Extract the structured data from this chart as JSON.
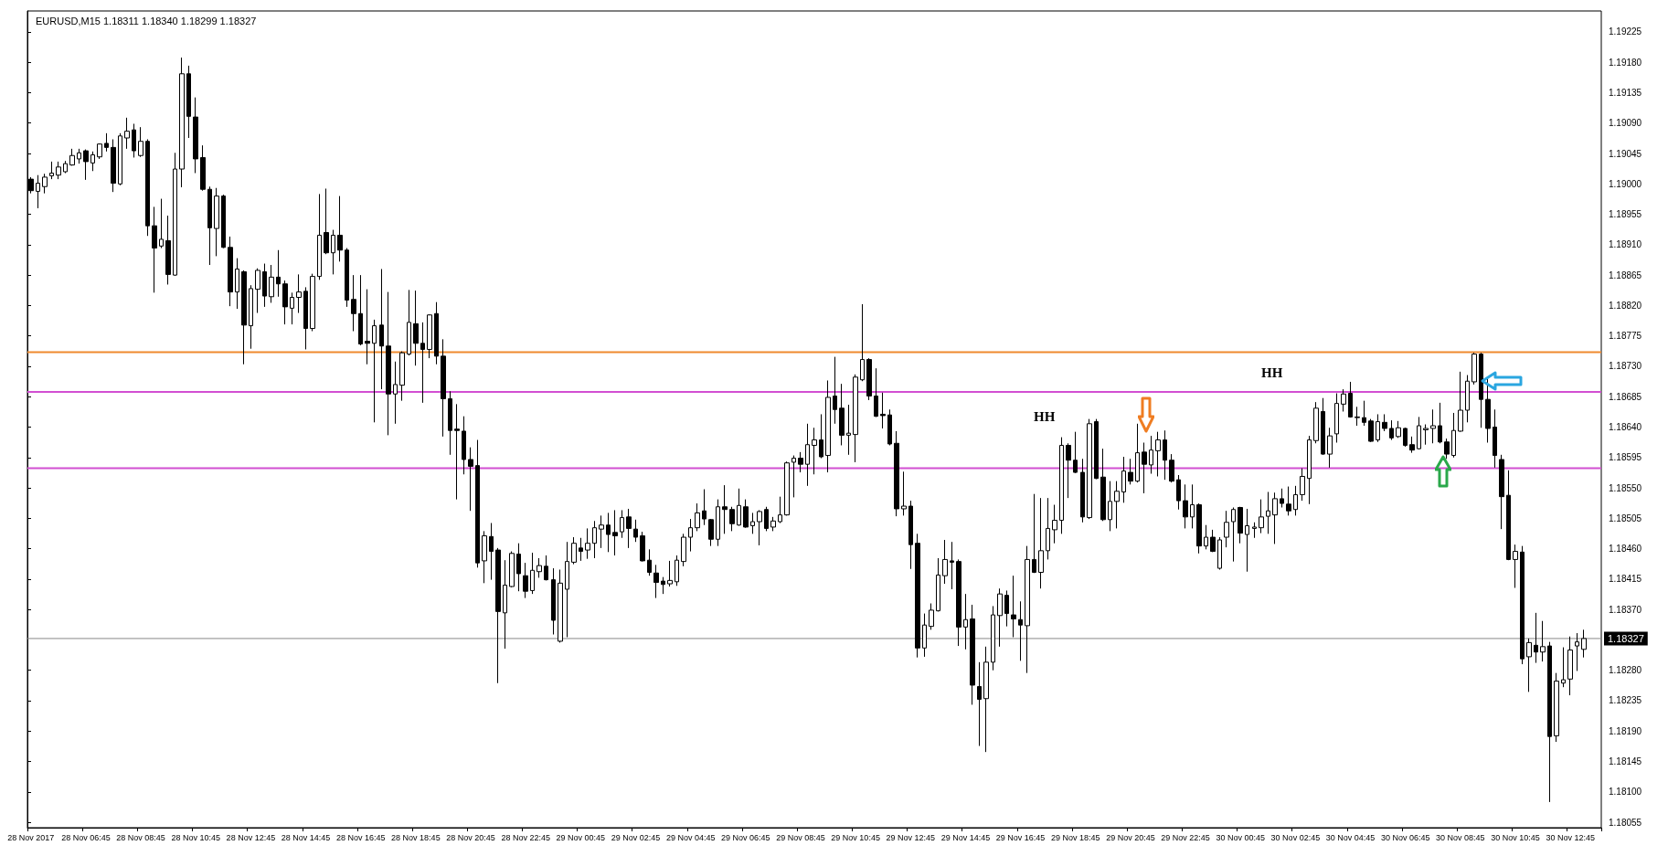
{
  "chart_data": {
    "type": "candlestick",
    "title": "EURUSD,M15 1.18311 1.18340 1.18299 1.18327",
    "color": "#000000",
    "categories": [
      "28 Nov 2017",
      null,
      null,
      null,
      null,
      null,
      null,
      null,
      "28 Nov 06:45",
      null,
      null,
      null,
      null,
      null,
      null,
      null,
      "28 Nov 08:45",
      null,
      null,
      null,
      null,
      null,
      null,
      null,
      "28 Nov 10:45",
      null,
      null,
      null,
      null,
      null,
      null,
      null,
      "28 Nov 12:45",
      null,
      null,
      null,
      null,
      null,
      null,
      null,
      "28 Nov 14:45",
      null,
      null,
      null,
      null,
      null,
      null,
      null,
      "28 Nov 16:45",
      null,
      null,
      null,
      null,
      null,
      null,
      null,
      "28 Nov 18:45",
      null,
      null,
      null,
      null,
      null,
      null,
      null,
      "28 Nov 20:45",
      null,
      null,
      null,
      null,
      null,
      null,
      null,
      "28 Nov 22:45",
      null,
      null,
      null,
      null,
      null,
      null,
      null,
      "29 Nov 00:45",
      null,
      null,
      null,
      null,
      null,
      null,
      null,
      "29 Nov 02:45",
      null,
      null,
      null,
      null,
      null,
      null,
      null,
      "29 Nov 04:45",
      null,
      null,
      null,
      null,
      null,
      null,
      null,
      "29 Nov 06:45",
      null,
      null,
      null,
      null,
      null,
      null,
      null,
      "29 Nov 08:45",
      null,
      null,
      null,
      null,
      null,
      null,
      null,
      "29 Nov 10:45",
      null,
      null,
      null,
      null,
      null,
      null,
      null,
      "29 Nov 12:45",
      null,
      null,
      null,
      null,
      null,
      null,
      null,
      "29 Nov 14:45",
      null,
      null,
      null,
      null,
      null,
      null,
      null,
      "29 Nov 16:45",
      null,
      null,
      null,
      null,
      null,
      null,
      null,
      "29 Nov 18:45",
      null,
      null,
      null,
      null,
      null,
      null,
      null,
      "29 Nov 20:45",
      null,
      null,
      null,
      null,
      null,
      null,
      null,
      "29 Nov 22:45",
      null,
      null,
      null,
      null,
      null,
      null,
      null,
      "30 Nov 00:45",
      null,
      null,
      null,
      null,
      null,
      null,
      null,
      "30 Nov 02:45",
      null,
      null,
      null,
      null,
      null,
      null,
      null,
      "30 Nov 04:45",
      null,
      null,
      null,
      null,
      null,
      null,
      null,
      "30 Nov 06:45",
      null,
      null,
      null,
      null,
      null,
      null,
      null,
      "30 Nov 08:45",
      null,
      null,
      null,
      null,
      null,
      null,
      null,
      "30 Nov 10:45",
      null,
      null,
      null,
      null,
      null,
      null,
      null,
      "30 Nov 12:45",
      null,
      null
    ],
    "ohlc": [
      [
        1.19007,
        1.1901,
        1.18986,
        1.1899
      ],
      [
        1.18989,
        1.19013,
        1.18964,
        1.19001
      ],
      [
        1.18996,
        1.19015,
        1.18986,
        1.1901
      ],
      [
        1.19012,
        1.19033,
        1.19007,
        1.19016
      ],
      [
        1.19013,
        1.19033,
        1.19007,
        1.19025
      ],
      [
        1.19018,
        1.19034,
        1.19016,
        1.1903
      ],
      [
        1.19028,
        1.19052,
        1.19027,
        1.19042
      ],
      [
        1.19037,
        1.19052,
        1.1903,
        1.19046
      ],
      [
        1.19049,
        1.19051,
        1.19006,
        1.19033
      ],
      [
        1.19031,
        1.19048,
        1.19019,
        1.19043
      ],
      [
        1.1904,
        1.1906,
        1.19037,
        1.19059
      ],
      [
        1.1906,
        1.19075,
        1.19048,
        1.19054
      ],
      [
        1.19054,
        1.19066,
        1.18988,
        1.19001
      ],
      [
        1.19,
        1.19075,
        1.18998,
        1.19071
      ],
      [
        1.19068,
        1.19098,
        1.19052,
        1.19078
      ],
      [
        1.1908,
        1.19089,
        1.19039,
        1.19049
      ],
      [
        1.19042,
        1.19084,
        1.1904,
        1.19063
      ],
      [
        1.19063,
        1.19066,
        1.18923,
        1.18938
      ],
      [
        1.18938,
        1.18966,
        1.18839,
        1.18905
      ],
      [
        1.18908,
        1.18978,
        1.18905,
        1.18918
      ],
      [
        1.18916,
        1.18953,
        1.18851,
        1.18866
      ],
      [
        1.18865,
        1.19046,
        1.18864,
        1.19022
      ],
      [
        1.19022,
        1.19187,
        1.18995,
        1.19163
      ],
      [
        1.19163,
        1.19175,
        1.19068,
        1.191
      ],
      [
        1.19099,
        1.19128,
        1.19016,
        1.19037
      ],
      [
        1.19039,
        1.19057,
        1.1899,
        1.18992
      ],
      [
        1.18992,
        1.18996,
        1.1888,
        1.18935
      ],
      [
        1.18934,
        1.18994,
        1.18893,
        1.18982
      ],
      [
        1.18982,
        1.18984,
        1.18905,
        1.18906
      ],
      [
        1.18906,
        1.18922,
        1.18819,
        1.1884
      ],
      [
        1.1884,
        1.1889,
        1.18815,
        1.18874
      ],
      [
        1.1887,
        1.18872,
        1.18733,
        1.18791
      ],
      [
        1.1879,
        1.1885,
        1.18756,
        1.18845
      ],
      [
        1.18844,
        1.18875,
        1.18809,
        1.18872
      ],
      [
        1.1887,
        1.18882,
        1.18818,
        1.18834
      ],
      [
        1.18833,
        1.1888,
        1.18824,
        1.18862
      ],
      [
        1.18862,
        1.18902,
        1.18833,
        1.18852
      ],
      [
        1.18852,
        1.18857,
        1.18792,
        1.18818
      ],
      [
        1.18816,
        1.18839,
        1.18792,
        1.18832
      ],
      [
        1.18832,
        1.18866,
        1.18809,
        1.1884
      ],
      [
        1.18841,
        1.18847,
        1.18755,
        1.18786
      ],
      [
        1.18786,
        1.18867,
        1.18782,
        1.18863
      ],
      [
        1.18863,
        1.18985,
        1.18858,
        1.18924
      ],
      [
        1.18928,
        1.18993,
        1.18896,
        1.18898
      ],
      [
        1.18898,
        1.18932,
        1.18866,
        1.18924
      ],
      [
        1.18924,
        1.18982,
        1.18885,
        1.18902
      ],
      [
        1.18902,
        1.18905,
        1.18818,
        1.18828
      ],
      [
        1.18829,
        1.18865,
        1.18782,
        1.18808
      ],
      [
        1.18808,
        1.18865,
        1.18761,
        1.18763
      ],
      [
        1.18767,
        1.18844,
        1.18733,
        1.18764
      ],
      [
        1.18764,
        1.18799,
        1.18647,
        1.1879
      ],
      [
        1.18791,
        1.18874,
        1.18696,
        1.1876
      ],
      [
        1.1876,
        1.1884,
        1.18628,
        1.18689
      ],
      [
        1.18689,
        1.18737,
        1.18645,
        1.18703
      ],
      [
        1.18702,
        1.18752,
        1.18679,
        1.1875
      ],
      [
        1.18748,
        1.18843,
        1.18746,
        1.18795
      ],
      [
        1.18793,
        1.18842,
        1.18731,
        1.18764
      ],
      [
        1.18764,
        1.18795,
        1.18676,
        1.18755
      ],
      [
        1.18755,
        1.18807,
        1.18742,
        1.18806
      ],
      [
        1.18808,
        1.18825,
        1.18733,
        1.18745
      ],
      [
        1.18745,
        1.1877,
        1.18626,
        1.18682
      ],
      [
        1.18682,
        1.18693,
        1.18599,
        1.18635
      ],
      [
        1.18637,
        1.18674,
        1.18533,
        1.18635
      ],
      [
        1.18634,
        1.18656,
        1.1857,
        1.18592
      ],
      [
        1.18592,
        1.1861,
        1.18516,
        1.18582
      ],
      [
        1.18583,
        1.18621,
        1.18432,
        1.18439
      ],
      [
        1.18442,
        1.18486,
        1.18409,
        1.18479
      ],
      [
        1.18478,
        1.18498,
        1.18414,
        1.18456
      ],
      [
        1.18458,
        1.18461,
        1.18261,
        1.18367
      ],
      [
        1.18365,
        1.18443,
        1.18312,
        1.18406
      ],
      [
        1.18404,
        1.18456,
        1.18403,
        1.18453
      ],
      [
        1.18452,
        1.18468,
        1.18397,
        1.18423
      ],
      [
        1.1842,
        1.18439,
        1.18387,
        1.18397
      ],
      [
        1.18398,
        1.18454,
        1.18393,
        1.18428
      ],
      [
        1.18426,
        1.18446,
        1.18417,
        1.18435
      ],
      [
        1.18434,
        1.1845,
        1.18413,
        1.18414
      ],
      [
        1.18414,
        1.18431,
        1.18333,
        1.18354
      ],
      [
        1.18323,
        1.18429,
        1.18321,
        1.18409
      ],
      [
        1.184,
        1.1847,
        1.18329,
        1.18441
      ],
      [
        1.1844,
        1.18477,
        1.18437,
        1.18468
      ],
      [
        1.18461,
        1.18476,
        1.18442,
        1.18456
      ],
      [
        1.18458,
        1.1849,
        1.18445,
        1.18468
      ],
      [
        1.18468,
        1.18501,
        1.18446,
        1.18491
      ],
      [
        1.18489,
        1.18509,
        1.18461,
        1.18495
      ],
      [
        1.18495,
        1.18513,
        1.18455,
        1.18481
      ],
      [
        1.18484,
        1.18517,
        1.1845,
        1.18479
      ],
      [
        1.18485,
        1.18517,
        1.18476,
        1.18506
      ],
      [
        1.18507,
        1.18519,
        1.18461,
        1.1849
      ],
      [
        1.18489,
        1.18503,
        1.1847,
        1.18477
      ],
      [
        1.18479,
        1.18485,
        1.18441,
        1.18442
      ],
      [
        1.18443,
        1.18459,
        1.1842,
        1.18425
      ],
      [
        1.18424,
        1.18436,
        1.18387,
        1.1841
      ],
      [
        1.18412,
        1.18418,
        1.18393,
        1.18407
      ],
      [
        1.18408,
        1.18442,
        1.18404,
        1.18413
      ],
      [
        1.18411,
        1.1845,
        1.18405,
        1.18443
      ],
      [
        1.18441,
        1.18482,
        1.18434,
        1.18477
      ],
      [
        1.18477,
        1.18504,
        1.18456,
        1.18491
      ],
      [
        1.18491,
        1.18527,
        1.18486,
        1.18513
      ],
      [
        1.18516,
        1.18548,
        1.18495,
        1.18504
      ],
      [
        1.18503,
        1.18504,
        1.18464,
        1.18474
      ],
      [
        1.18474,
        1.18533,
        1.18464,
        1.18522
      ],
      [
        1.18522,
        1.18554,
        1.18482,
        1.18518
      ],
      [
        1.18518,
        1.18522,
        1.18486,
        1.18497
      ],
      [
        1.18495,
        1.18549,
        1.18494,
        1.18524
      ],
      [
        1.18522,
        1.18533,
        1.18491,
        1.18492
      ],
      [
        1.18494,
        1.18513,
        1.18482,
        1.185
      ],
      [
        1.185,
        1.18517,
        1.18465,
        1.18515
      ],
      [
        1.18518,
        1.18522,
        1.18486,
        1.1849
      ],
      [
        1.18492,
        1.18507,
        1.18486,
        1.18501
      ],
      [
        1.185,
        1.18537,
        1.18498,
        1.1851
      ],
      [
        1.1851,
        1.18589,
        1.18509,
        1.18587
      ],
      [
        1.18588,
        1.18598,
        1.18536,
        1.18594
      ],
      [
        1.18594,
        1.18603,
        1.18573,
        1.18585
      ],
      [
        1.18585,
        1.18645,
        1.18553,
        1.18614
      ],
      [
        1.18613,
        1.18639,
        1.1857,
        1.18621
      ],
      [
        1.18621,
        1.18659,
        1.18594,
        1.18596
      ],
      [
        1.18598,
        1.18709,
        1.18573,
        1.18684
      ],
      [
        1.18686,
        1.18744,
        1.18645,
        1.18666
      ],
      [
        1.18668,
        1.18704,
        1.18613,
        1.18628
      ],
      [
        1.18628,
        1.18673,
        1.18599,
        1.18631
      ],
      [
        1.18629,
        1.18718,
        1.18588,
        1.18714
      ],
      [
        1.1871,
        1.18822,
        1.18708,
        1.1874
      ],
      [
        1.1874,
        1.18742,
        1.1868,
        1.18686
      ],
      [
        1.18686,
        1.18727,
        1.18655,
        1.18656
      ],
      [
        1.18659,
        1.18691,
        1.18638,
        1.18657
      ],
      [
        1.18658,
        1.18666,
        1.18613,
        1.18615
      ],
      [
        1.18616,
        1.18634,
        1.18508,
        1.18519
      ],
      [
        1.18519,
        1.18574,
        1.18509,
        1.18523
      ],
      [
        1.18523,
        1.18531,
        1.1843,
        1.18466
      ],
      [
        1.18468,
        1.18482,
        1.18299,
        1.18313
      ],
      [
        1.18313,
        1.18364,
        1.183,
        1.18347
      ],
      [
        1.18345,
        1.18379,
        1.1834,
        1.18369
      ],
      [
        1.18368,
        1.18446,
        1.18367,
        1.18421
      ],
      [
        1.1842,
        1.18473,
        1.18408,
        1.18444
      ],
      [
        1.18442,
        1.1847,
        1.184,
        1.1844
      ],
      [
        1.18441,
        1.18444,
        1.18316,
        1.18344
      ],
      [
        1.18344,
        1.18393,
        1.18311,
        1.18355
      ],
      [
        1.18356,
        1.18377,
        1.18229,
        1.18258
      ],
      [
        1.18256,
        1.18292,
        1.18168,
        1.18237
      ],
      [
        1.18238,
        1.18315,
        1.18159,
        1.18292
      ],
      [
        1.18292,
        1.18375,
        1.1828,
        1.18362
      ],
      [
        1.18361,
        1.18401,
        1.18315,
        1.18393
      ],
      [
        1.18391,
        1.18398,
        1.18345,
        1.18364
      ],
      [
        1.18362,
        1.1842,
        1.18329,
        1.18356
      ],
      [
        1.18355,
        1.18382,
        1.18294,
        1.18347
      ],
      [
        1.18346,
        1.18464,
        1.18276,
        1.18444
      ],
      [
        1.18444,
        1.18541,
        1.18424,
        1.18425
      ],
      [
        1.18425,
        1.18535,
        1.18401,
        1.18457
      ],
      [
        1.18457,
        1.18535,
        1.18444,
        1.1849
      ],
      [
        1.18488,
        1.18525,
        1.18468,
        1.18502
      ],
      [
        1.18502,
        1.18625,
        1.18482,
        1.18613
      ],
      [
        1.18613,
        1.18616,
        1.18535,
        1.18591
      ],
      [
        1.18591,
        1.18633,
        1.18572,
        1.18573
      ],
      [
        1.18573,
        1.18593,
        1.18499,
        1.18507
      ],
      [
        1.18506,
        1.18652,
        1.18504,
        1.18645
      ],
      [
        1.18648,
        1.18652,
        1.18563,
        1.18564
      ],
      [
        1.18566,
        1.18608,
        1.18501,
        1.18503
      ],
      [
        1.18503,
        1.1856,
        1.18486,
        1.1853
      ],
      [
        1.1853,
        1.1856,
        1.1849,
        1.18545
      ],
      [
        1.18544,
        1.18596,
        1.18528,
        1.18575
      ],
      [
        1.18573,
        1.18593,
        1.18555,
        1.1856
      ],
      [
        1.1856,
        1.18645,
        1.18558,
        1.18602
      ],
      [
        1.18603,
        1.18617,
        1.18542,
        1.18585
      ],
      [
        1.18584,
        1.18627,
        1.18571,
        1.18606
      ],
      [
        1.18605,
        1.18633,
        1.18567,
        1.18621
      ],
      [
        1.18621,
        1.18635,
        1.18562,
        1.18591
      ],
      [
        1.18591,
        1.186,
        1.18558,
        1.1856
      ],
      [
        1.18562,
        1.18569,
        1.18518,
        1.18531
      ],
      [
        1.18531,
        1.18555,
        1.1849,
        1.18507
      ],
      [
        1.18507,
        1.18555,
        1.1849,
        1.18525
      ],
      [
        1.18525,
        1.18527,
        1.18453,
        1.18464
      ],
      [
        1.18464,
        1.18495,
        1.18459,
        1.18477
      ],
      [
        1.18477,
        1.18488,
        1.18455,
        1.18456
      ],
      [
        1.18431,
        1.18477,
        1.18429,
        1.18473
      ],
      [
        1.18477,
        1.18516,
        1.18462,
        1.18499
      ],
      [
        1.185,
        1.18521,
        1.18441,
        1.18518
      ],
      [
        1.18521,
        1.18522,
        1.18468,
        1.18483
      ],
      [
        1.18481,
        1.18519,
        1.18426,
        1.18494
      ],
      [
        1.1849,
        1.18499,
        1.18476,
        1.18492
      ],
      [
        1.18491,
        1.18533,
        1.18483,
        1.18507
      ],
      [
        1.18508,
        1.18544,
        1.18482,
        1.18516
      ],
      [
        1.1851,
        1.18543,
        1.18467,
        1.18534
      ],
      [
        1.18534,
        1.18549,
        1.18521,
        1.18527
      ],
      [
        1.18526,
        1.18552,
        1.18509,
        1.18516
      ],
      [
        1.18518,
        1.18553,
        1.18509,
        1.1854
      ],
      [
        1.1854,
        1.18579,
        1.18531,
        1.18567
      ],
      [
        1.18564,
        1.18627,
        1.18526,
        1.18621
      ],
      [
        1.1862,
        1.18677,
        1.18616,
        1.18668
      ],
      [
        1.18663,
        1.18683,
        1.18599,
        1.186
      ],
      [
        1.186,
        1.18639,
        1.1858,
        1.18627
      ],
      [
        1.1863,
        1.1869,
        1.18617,
        1.18675
      ],
      [
        1.18674,
        1.18696,
        1.18663,
        1.18689
      ],
      [
        1.1869,
        1.18707,
        1.18654,
        1.18655
      ],
      [
        1.18654,
        1.1867,
        1.18642,
        1.18655
      ],
      [
        1.18654,
        1.18679,
        1.18642,
        1.18647
      ],
      [
        1.18649,
        1.18652,
        1.18618,
        1.18619
      ],
      [
        1.18621,
        1.18659,
        1.18618,
        1.18648
      ],
      [
        1.18647,
        1.18659,
        1.18634,
        1.18638
      ],
      [
        1.18638,
        1.1865,
        1.18621,
        1.18624
      ],
      [
        1.18626,
        1.18649,
        1.18624,
        1.18639
      ],
      [
        1.18638,
        1.18639,
        1.18611,
        1.18613
      ],
      [
        1.18614,
        1.18626,
        1.18602,
        1.18606
      ],
      [
        1.18608,
        1.18655,
        1.18607,
        1.18642
      ],
      [
        1.18636,
        1.18644,
        1.18614,
        1.18638
      ],
      [
        1.18638,
        1.18666,
        1.18616,
        1.18642
      ],
      [
        1.18642,
        1.18676,
        1.18616,
        1.18618
      ],
      [
        1.18618,
        1.18623,
        1.18593,
        1.186
      ],
      [
        1.18598,
        1.18661,
        1.18595,
        1.18635
      ],
      [
        1.18634,
        1.18722,
        1.18633,
        1.18665
      ],
      [
        1.18665,
        1.18717,
        1.18647,
        1.18708
      ],
      [
        1.18707,
        1.1875,
        1.18703,
        1.18748
      ],
      [
        1.18748,
        1.1875,
        1.18639,
        1.18681
      ],
      [
        1.18681,
        1.18712,
        1.18617,
        1.18638
      ],
      [
        1.1864,
        1.18666,
        1.1858,
        1.18598
      ],
      [
        1.18592,
        1.18599,
        1.18489,
        1.18537
      ],
      [
        1.18539,
        1.18576,
        1.18443,
        1.18444
      ],
      [
        1.18444,
        1.18466,
        1.18402,
        1.18456
      ],
      [
        1.18455,
        1.18464,
        1.18289,
        1.18297
      ],
      [
        1.183,
        1.18327,
        1.18248,
        1.18321
      ],
      [
        1.18317,
        1.18365,
        1.18291,
        1.18307
      ],
      [
        1.18307,
        1.18353,
        1.18293,
        1.18315
      ],
      [
        1.18316,
        1.18322,
        1.18085,
        1.18182
      ],
      [
        1.18183,
        1.18276,
        1.18174,
        1.18264
      ],
      [
        1.18261,
        1.18314,
        1.18255,
        1.18266
      ],
      [
        1.18267,
        1.1833,
        1.18243,
        1.1831
      ],
      [
        1.18316,
        1.18335,
        1.18279,
        1.18322
      ],
      [
        1.18311,
        1.1834,
        1.18299,
        1.18327
      ]
    ],
    "ylim": [
      1.18047,
      1.19256
    ],
    "yticks": [
      1.18055,
      {
        "value": 1.181,
        "label": "1.18100"
      },
      1.18145,
      {
        "value": 1.1819,
        "label": "1.18190"
      },
      1.18235,
      {
        "value": 1.1828,
        "label": "1.18280"
      },
      {
        "value": 1.1837,
        "label": "1.18370"
      },
      1.18415,
      {
        "value": 1.1846,
        "label": "1.18460"
      },
      1.18505,
      {
        "value": 1.1855,
        "label": "1.18550"
      },
      1.18595,
      {
        "value": 1.1864,
        "label": "1.18640"
      },
      1.18685,
      {
        "value": 1.1873,
        "label": "1.18730"
      },
      1.18775,
      {
        "value": 1.1882,
        "label": "1.18820"
      },
      1.18865,
      {
        "value": 1.1891,
        "label": "1.18910"
      },
      1.18955,
      {
        "value": 1.19,
        "label": "1.19000"
      },
      1.19045,
      {
        "value": 1.1909,
        "label": "1.19090"
      },
      1.19135,
      {
        "value": 1.1918,
        "label": "1.19180"
      },
      1.19225
    ],
    "ref_lines": [
      {
        "axis": "y",
        "value": 1.18751,
        "color": "#ef8a2e"
      },
      {
        "axis": "y",
        "value": 1.18692,
        "color": "#d24fd2"
      },
      {
        "axis": "y",
        "value": 1.18579,
        "color": "#d24fd2"
      },
      {
        "axis": "y",
        "value": 1.18327,
        "label": "1.18327",
        "color": "#888888"
      }
    ],
    "annotations": [
      "HH",
      "HH"
    ],
    "grid": false
  }
}
